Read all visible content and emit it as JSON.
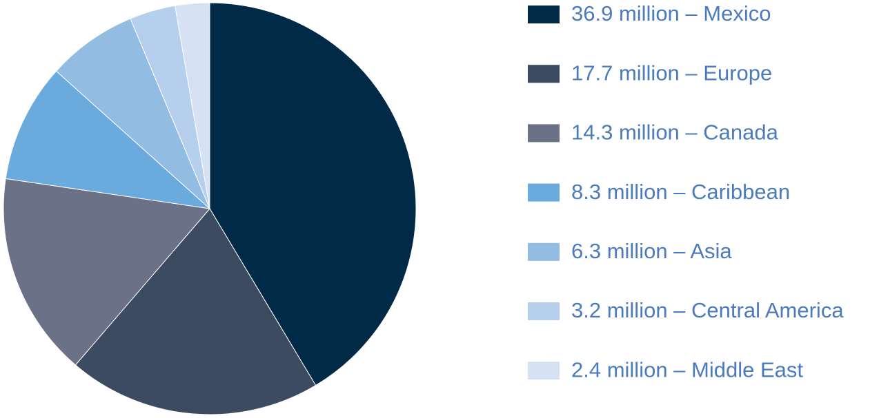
{
  "chart_data": {
    "type": "pie",
    "categories": [
      "36.9 million – Mexico",
      "17.7 million – Europe",
      "14.3 million – Canada",
      "8.3 million – Caribbean",
      "6.3 million – Asia",
      "3.2 million – Central America",
      "2.4 million – Middle East"
    ],
    "values": [
      36.9,
      17.7,
      14.3,
      8.3,
      6.3,
      3.2,
      2.4
    ],
    "colors": [
      "#012a46",
      "#3c4a62",
      "#6b7186",
      "#6aaadc",
      "#93bce3",
      "#b5cfed",
      "#d6e2f4"
    ],
    "legend": "right"
  }
}
